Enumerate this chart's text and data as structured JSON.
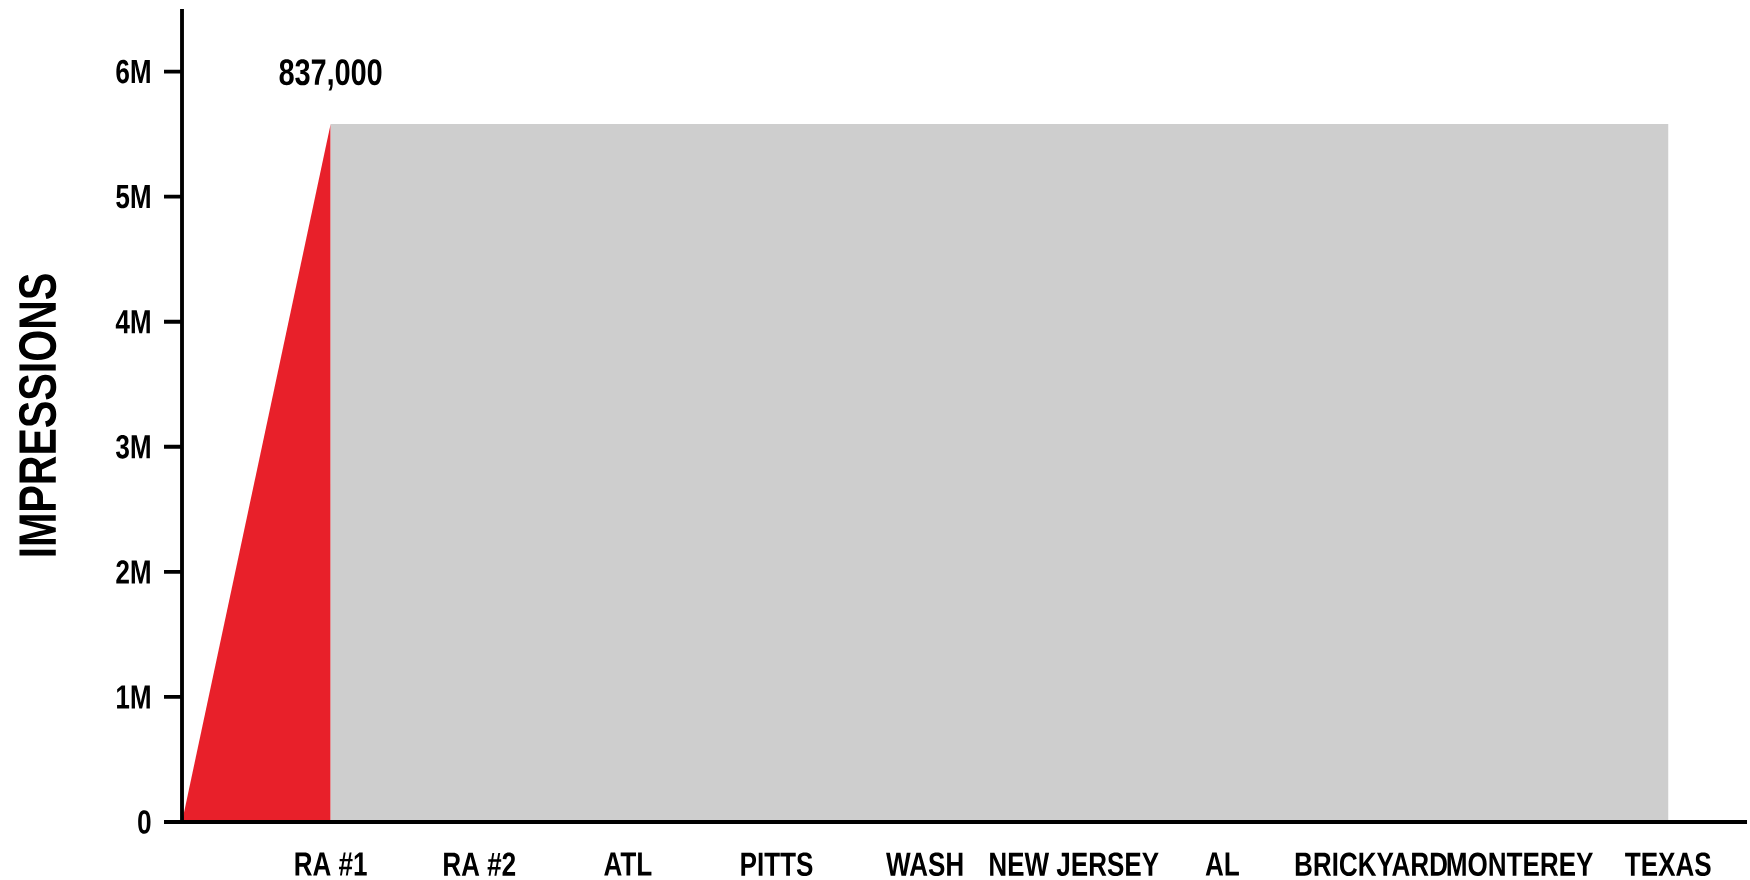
{
  "chart_data": {
    "type": "area",
    "ylabel": "IMPRESSIONS",
    "categories": [
      null,
      "RA #1",
      "RA #2",
      "ATL",
      "PITTS",
      "WASH",
      "NEW JERSEY",
      "AL",
      "BRICKYARD",
      "MONTEREY",
      "TEXAS"
    ],
    "series": [
      {
        "color": "#e8202a",
        "values": [
          0,
          5580000,
          null,
          null,
          null,
          null,
          null,
          null,
          null,
          null,
          null
        ]
      },
      {
        "color": "#cecece",
        "values": [
          null,
          5580000,
          5580000,
          5580000,
          5580000,
          5580000,
          5580000,
          5580000,
          5580000,
          5580000,
          5580000
        ]
      }
    ],
    "ylim": [
      0,
      6500000
    ],
    "yticks": [
      0,
      {
        "value": 1000000,
        "label": "1M"
      },
      {
        "value": 2000000,
        "label": "2M"
      },
      {
        "value": 3000000,
        "label": "3M"
      },
      {
        "value": 4000000,
        "label": "4M"
      },
      {
        "value": 5000000,
        "label": "5M"
      },
      {
        "value": 6000000,
        "label": "6M"
      }
    ],
    "annotations": [
      {
        "text": "837,000",
        "x": "RA #1",
        "y": 5580000
      }
    ],
    "grid": false
  }
}
